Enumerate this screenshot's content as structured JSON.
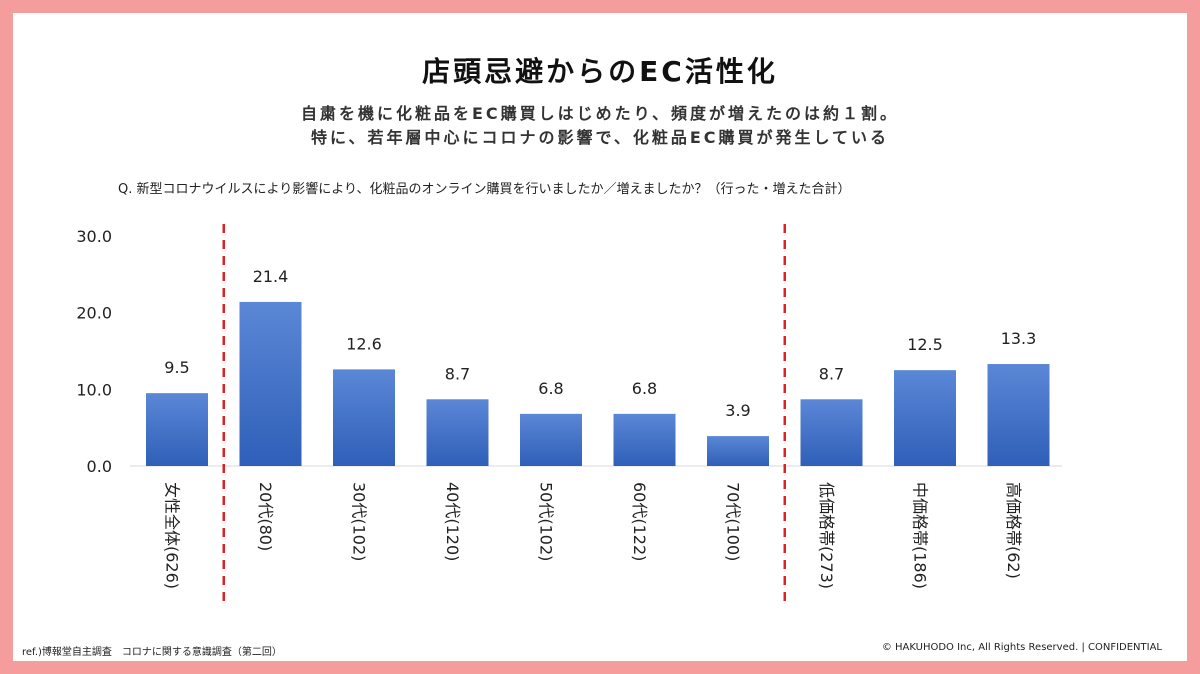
{
  "title": "店頭忌避からのEC活性化",
  "subtitle_line1": "自粛を機に化粧品をEC購買しはじめたり、頻度が増えたのは約１割。",
  "subtitle_line2": "特に、若年層中心にコロナの影響で、化粧品EC購買が発生している",
  "question": "Q. 新型コロナウイルスにより影響により、化粧品のオンライン購買を行いましたか／増えましたか？（行った・増えた合計）",
  "footer_left": "ref.)博報堂自主調査　コロナに関する意識調査（第二回）",
  "footer_right": "© HAKUHODO  Inc, All  Rights  Reserved. | CONFIDENTIAL",
  "colors": {
    "bar": "#4472c4",
    "bar_light": "#5b87d6",
    "divider": "#e02020",
    "frame": "#f59c9c"
  },
  "chart_data": {
    "type": "bar",
    "categories": [
      "女性全体(626)",
      "20代(80)",
      "30代(102)",
      "40代(120)",
      "50代(102)",
      "60代(122)",
      "70代(100)",
      "低価格帯(273)",
      "中価格帯(186)",
      "高価格帯(62)"
    ],
    "values": [
      9.5,
      21.4,
      12.6,
      8.7,
      6.8,
      6.8,
      3.9,
      8.7,
      12.5,
      13.3
    ],
    "value_labels": [
      "9.5",
      "21.4",
      "12.6",
      "8.7",
      "6.8",
      "6.8",
      "3.9",
      "8.7",
      "12.5",
      "13.3"
    ],
    "yticks": [
      "0.0",
      "10.0",
      "20.0",
      "30.0"
    ],
    "ytick_values": [
      0,
      10,
      20,
      30
    ],
    "ylim": [
      0,
      30
    ],
    "grid": false,
    "dividers_after_index": [
      0,
      6
    ]
  }
}
